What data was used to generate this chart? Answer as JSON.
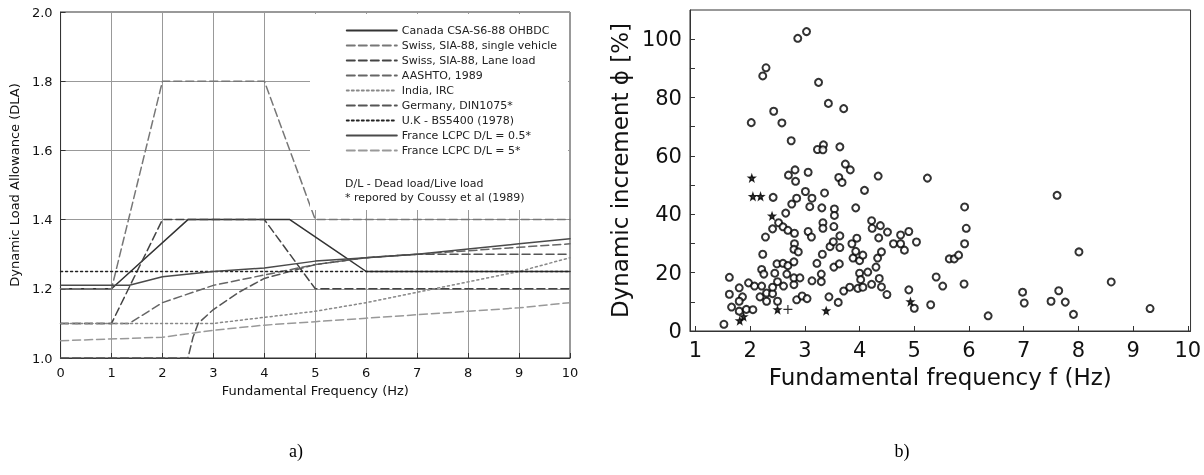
{
  "chart_data": [
    {
      "type": "line",
      "xlabel": "Fundamental Frequency (Hz)",
      "ylabel": "Dynamic Load Allowance (DLA)",
      "xlim": [
        0,
        10
      ],
      "ylim": [
        1,
        2
      ],
      "xticks": [
        0,
        1,
        2,
        3,
        4,
        5,
        6,
        7,
        8,
        9,
        10
      ],
      "yticks": [
        {
          "value": 1,
          "label": "1.0"
        },
        {
          "value": 1.2,
          "label": "1.2"
        },
        {
          "value": 1.4,
          "label": "1.4"
        },
        {
          "value": 1.6,
          "label": "1.6"
        },
        {
          "value": 1.8,
          "label": "1.8"
        },
        {
          "value": 2,
          "label": "2.0"
        }
      ],
      "grid": true,
      "legend": "top right",
      "marker": "none",
      "annotations": [
        "D/L - Dead load/Live load",
        "* repored by Coussy et al (1989)",
        "a)"
      ],
      "series": [
        {
          "name": "Canada CSA-S6-88 OHBDC",
          "color": "#333333",
          "line_style": "solid",
          "x": [
            0,
            1,
            2.5,
            4.5,
            6,
            10
          ],
          "values": [
            1.2,
            1.2,
            1.4,
            1.4,
            1.25,
            1.25
          ]
        },
        {
          "name": "Swiss, SIA-88, single vehicle",
          "color": "#777777",
          "line_style": "dashed",
          "x": [
            0,
            1,
            2,
            4,
            5,
            10
          ],
          "values": [
            1.2,
            1.2,
            1.8,
            1.8,
            1.4,
            1.4
          ]
        },
        {
          "name": "Swiss, SIA-88, Lane load",
          "color": "#444444",
          "line_style": "dashed",
          "x": [
            0,
            1,
            2,
            4,
            5,
            10
          ],
          "values": [
            1.1,
            1.1,
            1.4,
            1.4,
            1.2,
            1.2
          ]
        },
        {
          "name": "AASHTO, 1989",
          "color": "#666666",
          "line_style": "dashed",
          "x": [
            0,
            1.35,
            2,
            3,
            4,
            5,
            6,
            7,
            8,
            9,
            10
          ],
          "values": [
            1.1,
            1.1,
            1.16,
            1.21,
            1.24,
            1.27,
            1.29,
            1.3,
            1.31,
            1.32,
            1.33
          ]
        },
        {
          "name": "India, IRC",
          "color": "#888888",
          "line_style": "dotted",
          "x": [
            0,
            3,
            5,
            6,
            7,
            8,
            9,
            10
          ],
          "values": [
            1.1,
            1.1,
            1.135,
            1.16,
            1.19,
            1.22,
            1.25,
            1.29
          ]
        },
        {
          "name": "Germany, DIN1075*",
          "color": "#555555",
          "line_style": "dashed",
          "x": [
            0,
            2.5,
            2.6,
            2.7,
            3,
            3.5,
            4,
            5,
            6,
            7,
            10
          ],
          "values": [
            1,
            1,
            1.06,
            1.1,
            1.14,
            1.19,
            1.23,
            1.27,
            1.29,
            1.3,
            1.3
          ]
        },
        {
          "name": "U.K - BS5400 (1978)",
          "color": "#222222",
          "line_style": "dotted",
          "x": [
            0,
            10
          ],
          "values": [
            1.25,
            1.25
          ]
        },
        {
          "name": "France LCPC D/L = 0.5*",
          "color": "#4a4a4a",
          "line_style": "solid",
          "x": [
            0,
            1.35,
            2,
            3,
            4,
            5,
            6,
            7,
            8,
            9,
            10
          ],
          "values": [
            1.21,
            1.21,
            1.235,
            1.25,
            1.26,
            1.28,
            1.29,
            1.3,
            1.315,
            1.33,
            1.345
          ]
        },
        {
          "name": "France LCPC D/L = 5*",
          "color": "#999999",
          "line_style": "dashed",
          "x": [
            0,
            2,
            3,
            4,
            5,
            6,
            7,
            8,
            9,
            10
          ],
          "values": [
            1.05,
            1.06,
            1.08,
            1.095,
            1.105,
            1.115,
            1.125,
            1.135,
            1.145,
            1.16
          ]
        }
      ]
    },
    {
      "type": "scatter",
      "xlabel": "Fundamental frequency f (Hz)",
      "ylabel": "Dynamic increment ϕ [%]",
      "xlim": [
        0.9,
        10.05
      ],
      "ylim": [
        0,
        110
      ],
      "xticks": [
        1,
        2,
        3,
        4,
        5,
        6,
        7,
        8,
        9,
        10
      ],
      "yticks": [
        0,
        {
          "value": 10,
          "label": null
        },
        20,
        {
          "value": 30,
          "label": null
        },
        40,
        {
          "value": 50,
          "label": null
        },
        60,
        {
          "value": 70,
          "label": null
        },
        80,
        {
          "value": 90,
          "label": null
        },
        100
      ],
      "grid": false,
      "annotations": [
        "b)"
      ],
      "series": [
        {
          "color": "#000000",
          "marker": "circle",
          "x": [
            3.03,
            2.87,
            2.29,
            2.23,
            3.25,
            3.43,
            3.71,
            2.43,
            2.02,
            2.58,
            2.75,
            3.34,
            3.23,
            3.33,
            3.64,
            3.74,
            3.83,
            2.82,
            2.7,
            3.06,
            2.83,
            3.62,
            3.68,
            4.34,
            5.24,
            4.09,
            3.01,
            3.36,
            2.42,
            2.85,
            3.13,
            2.76,
            3.09,
            3.31,
            3.93,
            5.92,
            7.61,
            3.54,
            3.54,
            2.65,
            2.52,
            2.41,
            2.6,
            2.69,
            2.81,
            2.28,
            1.52,
            1.62,
            1.62,
            1.66,
            1.8,
            1.86,
            1.8,
            1.8,
            1.93,
            2.05,
            1.97,
            2.08,
            2.21,
            2.21,
            2.25,
            2.23,
            2.18,
            2.3,
            2.3,
            2.41,
            2.41,
            2.45,
            2.5,
            2.5,
            2.49,
            2.6,
            2.69,
            2.61,
            2.67,
            2.8,
            2.8,
            2.8,
            2.91,
            2.81,
            2.8,
            2.88,
            2.85,
            2.95,
            3.04,
            3.13,
            3.22,
            3.3,
            3.3,
            3.32,
            3.06,
            3.12,
            3.33,
            3.33,
            3.53,
            3.44,
            3.46,
            3.53,
            3.52,
            3.63,
            3.64,
            3.64,
            3.61,
            3.71,
            3.82,
            3.86,
            3.88,
            3.93,
            3.95,
            3.97,
            4.0,
            4.06,
            4.0,
            4.02,
            4.06,
            4.15,
            4.22,
            4.3,
            4.33,
            4.4,
            4.35,
            4.22,
            4.23,
            4.38,
            4.51,
            4.36,
            4.4,
            4.5,
            4.62,
            4.75,
            4.75,
            4.9,
            4.82,
            5.04,
            4.9,
            5.0,
            5.3,
            5.4,
            5.52,
            5.64,
            5.73,
            5.81,
            5.92,
            5.95,
            5.91,
            6.35,
            6.98,
            7.01,
            7.5,
            7.64,
            7.76,
            7.91,
            8.01,
            8.6,
            9.31
          ],
          "values": [
            102.6,
            100.3,
            90.2,
            87.4,
            85.2,
            78,
            76.2,
            75.3,
            71.4,
            71.3,
            65.2,
            63.8,
            62.2,
            62.1,
            63.1,
            57.2,
            55.2,
            55.2,
            53.4,
            54.4,
            51.3,
            52.6,
            50.9,
            53.1,
            52.4,
            48.2,
            47.8,
            47.3,
            45.8,
            45.5,
            45.5,
            43.5,
            42.6,
            42.2,
            42.2,
            42.5,
            46.5,
            41.8,
            39.6,
            40.4,
            37.1,
            35,
            35.7,
            34.5,
            33.5,
            32.2,
            2.3,
            18.4,
            12.6,
            8.2,
            14.8,
            11.7,
            10.2,
            6.8,
            7.4,
            7.3,
            16.5,
            15.4,
            15.4,
            21.1,
            19.5,
            26.3,
            11.7,
            10.2,
            13,
            12.8,
            15,
            19.8,
            16.9,
            10.2,
            23,
            23.2,
            22.4,
            15.4,
            19.5,
            23.7,
            15.9,
            18.2,
            18.2,
            29.9,
            28,
            27.1,
            10.7,
            12,
            11.1,
            17.2,
            23.2,
            19.5,
            16.9,
            26.3,
            34.1,
            32.2,
            37.1,
            35.2,
            35.8,
            11.7,
            28.9,
            21.9,
            30.6,
            23,
            32.6,
            28.6,
            9.8,
            13.7,
            15,
            29.9,
            25,
            27.3,
            31.8,
            14.6,
            24.1,
            26,
            19.8,
            17.6,
            15,
            20.2,
            16,
            21.9,
            25,
            27.1,
            31.9,
            37.8,
            35.2,
            36.1,
            33.9,
            18,
            15.1,
            12.5,
            29.9,
            29.9,
            32.9,
            34.1,
            27.7,
            30.5,
            14.1,
            7.8,
            9,
            18.5,
            15.4,
            24.7,
            24.7,
            26,
            29.9,
            35.2,
            16.1,
            5.2,
            13.3,
            9.6,
            10.2,
            13.8,
            9.9,
            5.7,
            27.1,
            16.8,
            7.7
          ]
        },
        {
          "color": "#000000",
          "marker": "star",
          "x": [
            2.03,
            2.05,
            2.19,
            2.4,
            1.81,
            1.88,
            2.5,
            3.39,
            4.93
          ],
          "values": [
            52.4,
            46.1,
            46.1,
            39.4,
            3.5,
            4.9,
            7.3,
            6.9,
            10
          ]
        },
        {
          "color": "#000000",
          "marker": "cross",
          "x": [
            2.69
          ],
          "values": [
            7.4
          ]
        }
      ]
    }
  ]
}
